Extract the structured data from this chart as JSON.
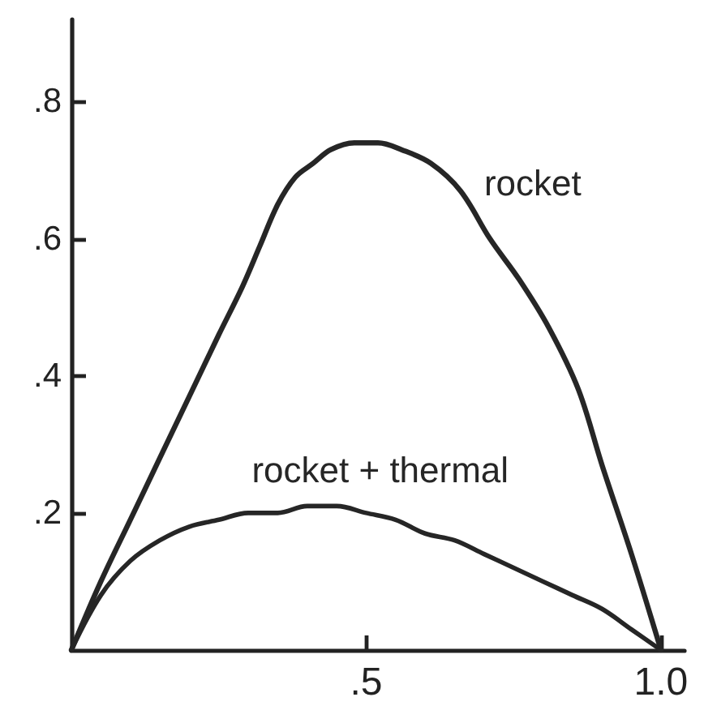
{
  "chart_data": {
    "type": "line",
    "xlim": [
      0,
      1.04
    ],
    "ylim": [
      0,
      0.92
    ],
    "xticks": [
      {
        "value": 0.5,
        "label": ".5"
      },
      {
        "value": 1,
        "label": "1.0"
      }
    ],
    "yticks": [
      {
        "value": 0.2,
        "label": ".2"
      },
      {
        "value": 0.4,
        "label": ".4"
      },
      {
        "value": 0.6,
        "label": ".6"
      },
      {
        "value": 0.8,
        "label": ".8"
      }
    ],
    "series": [
      {
        "name": "rocket",
        "color": "#262626",
        "x": [
          0,
          0.05,
          0.1,
          0.15,
          0.2,
          0.25,
          0.29,
          0.32,
          0.35,
          0.38,
          0.41,
          0.44,
          0.48,
          0.52,
          0.56,
          0.61,
          0.66,
          0.71,
          0.76,
          0.81,
          0.86,
          0.9,
          0.95,
          1
        ],
        "values": [
          0,
          0.1,
          0.19,
          0.28,
          0.37,
          0.46,
          0.53,
          0.59,
          0.65,
          0.69,
          0.71,
          0.73,
          0.74,
          0.74,
          0.73,
          0.71,
          0.67,
          0.6,
          0.54,
          0.47,
          0.38,
          0.27,
          0.14,
          0
        ]
      },
      {
        "name": "rocket + thermal",
        "color": "#262626",
        "x": [
          0,
          0.05,
          0.1,
          0.15,
          0.2,
          0.25,
          0.3,
          0.35,
          0.4,
          0.45,
          0.5,
          0.55,
          0.6,
          0.65,
          0.7,
          0.75,
          0.8,
          0.85,
          0.9,
          0.95,
          1
        ],
        "values": [
          0,
          0.08,
          0.13,
          0.16,
          0.18,
          0.19,
          0.2,
          0.2,
          0.21,
          0.21,
          0.2,
          0.19,
          0.17,
          0.16,
          0.14,
          0.12,
          0.1,
          0.08,
          0.06,
          0.03,
          0
        ]
      }
    ]
  }
}
